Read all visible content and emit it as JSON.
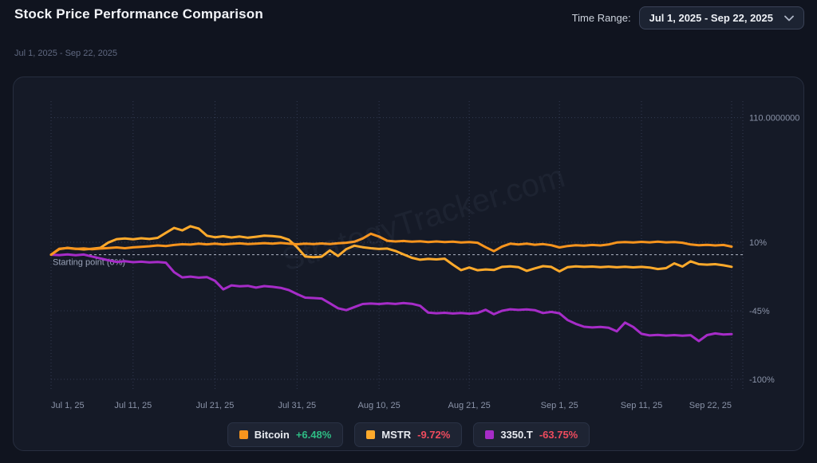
{
  "header": {
    "title": "Stock Price Performance Comparison",
    "time_range_label": "Time Range:",
    "time_range_value": "Jul 1, 2025 - Sep 22, 2025"
  },
  "subtitle": "Jul 1, 2025 - Sep 22, 2025",
  "watermark": "StrategyTracker.com",
  "chart_data": {
    "type": "line",
    "title": "Stock Price Performance Comparison",
    "x_range_days": [
      0,
      83
    ],
    "x_ticks": [
      {
        "day": 0,
        "label": "Jul 1, 25"
      },
      {
        "day": 10,
        "label": "Jul 11, 25"
      },
      {
        "day": 20,
        "label": "Jul 21, 25"
      },
      {
        "day": 30,
        "label": "Jul 31, 25"
      },
      {
        "day": 40,
        "label": "Aug 10, 25"
      },
      {
        "day": 51,
        "label": "Aug 21, 25"
      },
      {
        "day": 62,
        "label": "Sep 1, 25"
      },
      {
        "day": 72,
        "label": "Sep 11, 25"
      },
      {
        "day": 83,
        "label": "Sep 22, 25"
      }
    ],
    "y_ticks": [
      {
        "value": 110,
        "label": "110.0000000"
      },
      {
        "value": 10,
        "label": "10%"
      },
      {
        "value": -45,
        "label": "-45%"
      },
      {
        "value": -100,
        "label": "-100%"
      }
    ],
    "baseline": {
      "value": 0,
      "label": "Starting point (0%)"
    },
    "grid": true,
    "legend_position": "bottom",
    "colors": {
      "positive": "#2ebd85",
      "negative": "#ef4b5e"
    },
    "series": [
      {
        "name": "3350.T",
        "change_label": "-63.75%",
        "change_positive": false,
        "color": "#a62cc8",
        "values": [
          0,
          -0.3,
          0.2,
          -0.4,
          0.1,
          -1.5,
          -3.0,
          -4.5,
          -5.8,
          -5.2,
          -6.0,
          -5.6,
          -6.2,
          -5.8,
          -6.4,
          -14.0,
          -18.2,
          -17.6,
          -18.4,
          -18.0,
          -21.0,
          -27.8,
          -24.6,
          -25.4,
          -25.0,
          -26.4,
          -25.2,
          -25.8,
          -26.6,
          -28.4,
          -31.6,
          -34.5,
          -34.8,
          -35.2,
          -39.0,
          -43.0,
          -44.5,
          -42.0,
          -39.6,
          -39.2,
          -39.6,
          -39.0,
          -39.5,
          -38.8,
          -39.4,
          -41.0,
          -46.5,
          -47.0,
          -46.6,
          -47.2,
          -46.8,
          -47.3,
          -46.8,
          -44.2,
          -47.8,
          -45.0,
          -43.8,
          -44.3,
          -43.9,
          -44.5,
          -46.8,
          -45.9,
          -47.0,
          -52.5,
          -55.5,
          -57.8,
          -58.4,
          -58.0,
          -58.6,
          -61.5,
          -54.5,
          -58.0,
          -63.5,
          -64.8,
          -64.4,
          -64.9,
          -64.5,
          -65.0,
          -64.6,
          -69.3,
          -64.5,
          -63.2,
          -64.0,
          -63.75
        ]
      },
      {
        "name": "MSTR",
        "change_label": "-9.72%",
        "change_positive": false,
        "color": "#ffaa2b",
        "values": [
          0,
          4.5,
          5.5,
          4.8,
          4.2,
          4.8,
          5.5,
          9.8,
          12.5,
          13.0,
          12.4,
          13.2,
          12.6,
          13.5,
          17.5,
          21.5,
          19.5,
          22.8,
          21.0,
          15.2,
          14.0,
          14.8,
          13.8,
          14.6,
          13.6,
          14.4,
          15.2,
          14.9,
          14.2,
          12.0,
          6.0,
          -1.5,
          -2.0,
          -1.6,
          3.4,
          -1.0,
          4.5,
          7.2,
          6.0,
          5.2,
          4.6,
          4.9,
          3.0,
          0.2,
          -2.5,
          -4.0,
          -3.4,
          -3.8,
          -3.2,
          -8.0,
          -12.4,
          -10.3,
          -12.5,
          -11.8,
          -12.3,
          -9.8,
          -9.4,
          -10.0,
          -13.0,
          -11.0,
          -9.2,
          -9.8,
          -13.4,
          -10.0,
          -9.4,
          -9.8,
          -9.5,
          -10.0,
          -9.6,
          -10.1,
          -9.7,
          -10.2,
          -9.8,
          -10.3,
          -11.5,
          -10.8,
          -7.0,
          -9.5,
          -5.3,
          -7.6,
          -8.0,
          -7.6,
          -8.5,
          -9.72
        ]
      },
      {
        "name": "Bitcoin",
        "change_label": "+6.48%",
        "change_positive": true,
        "color": "#f7941d",
        "values": [
          0,
          4.8,
          5.3,
          4.6,
          5.0,
          4.4,
          4.9,
          5.4,
          5.8,
          5.2,
          5.9,
          6.3,
          6.8,
          7.4,
          7.0,
          7.8,
          8.4,
          8.1,
          8.8,
          8.3,
          8.9,
          8.2,
          8.7,
          9.1,
          8.5,
          8.9,
          9.3,
          8.8,
          9.4,
          8.9,
          8.4,
          8.9,
          8.5,
          9.0,
          8.6,
          9.2,
          9.6,
          10.4,
          13.0,
          16.8,
          14.5,
          11.2,
          10.6,
          11.0,
          10.4,
          10.8,
          10.2,
          10.6,
          10.1,
          10.5,
          9.8,
          10.2,
          9.6,
          6.0,
          2.8,
          6.5,
          8.8,
          8.2,
          8.8,
          8.0,
          8.5,
          7.6,
          5.8,
          7.0,
          7.6,
          7.2,
          7.8,
          7.4,
          8.2,
          9.8,
          10.2,
          9.8,
          10.3,
          9.9,
          10.4,
          9.9,
          10.2,
          9.6,
          8.2,
          7.6,
          7.9,
          7.4,
          7.8,
          6.48
        ]
      }
    ],
    "legend_order": [
      "Bitcoin",
      "MSTR",
      "3350.T"
    ]
  }
}
